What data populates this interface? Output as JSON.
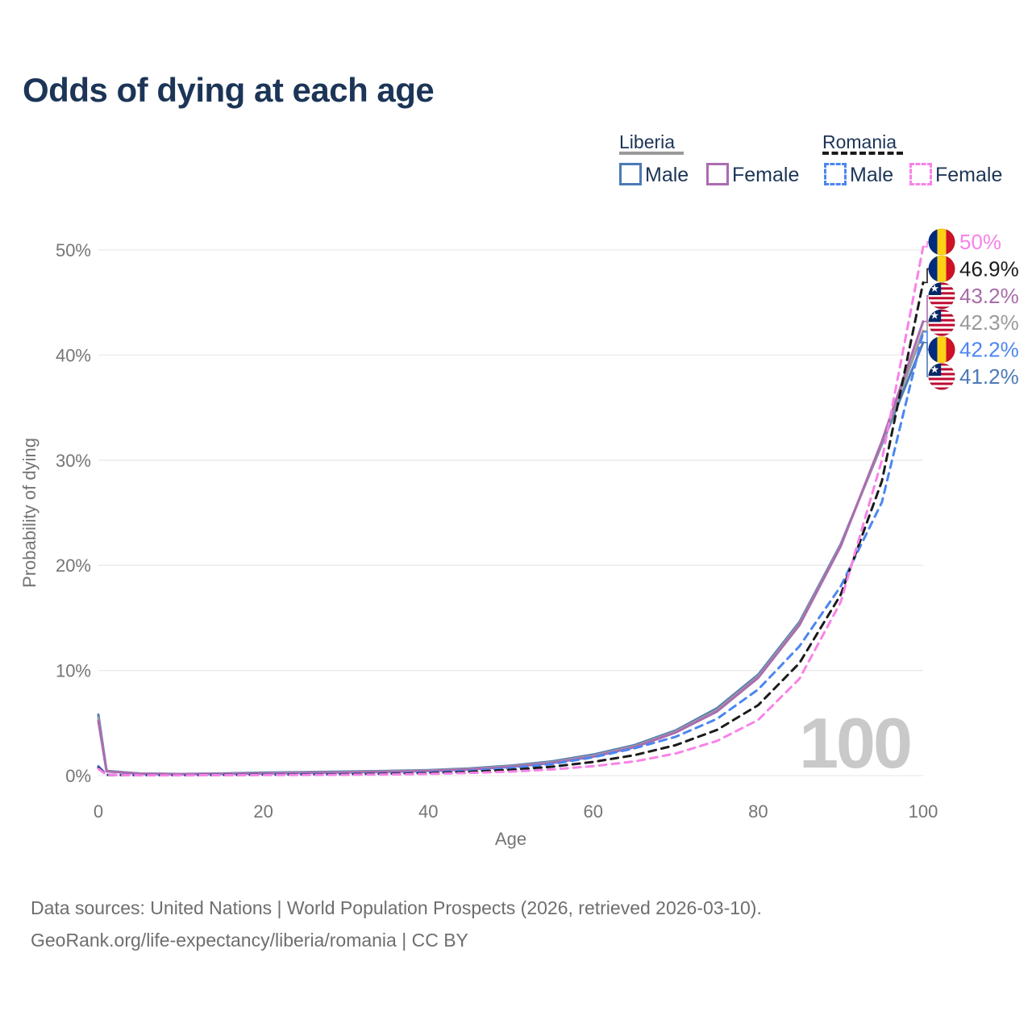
{
  "title": "Odds of dying at each age",
  "legend": {
    "groups": [
      {
        "country": "Liberia",
        "line_style": "solid",
        "items": [
          {
            "label": "Male",
            "series": "liberia_male"
          },
          {
            "label": "Female",
            "series": "liberia_female"
          }
        ]
      },
      {
        "country": "Romania",
        "line_style": "dashed",
        "items": [
          {
            "label": "Male",
            "series": "romania_male"
          },
          {
            "label": "Female",
            "series": "romania_female"
          }
        ]
      }
    ]
  },
  "chart_data": {
    "type": "line",
    "title": "Odds of dying at each age",
    "xlabel": "Age",
    "ylabel": "Probability of dying",
    "xlim": [
      0,
      100
    ],
    "ylim": [
      0,
      50
    ],
    "x_ticks": [
      0,
      20,
      40,
      60,
      80,
      100
    ],
    "y_ticks": [
      "0%",
      "10%",
      "20%",
      "30%",
      "40%",
      "50%"
    ],
    "grid": "horizontal",
    "legend_position": "top-right",
    "watermark": "100",
    "ages": [
      0,
      1,
      5,
      10,
      15,
      20,
      25,
      30,
      35,
      40,
      45,
      50,
      55,
      60,
      65,
      70,
      75,
      80,
      85,
      90,
      95,
      100
    ],
    "series": [
      {
        "id": "liberia_male",
        "name": "Liberia Male",
        "color": "#4d7ab5",
        "dash": "solid",
        "values": [
          5.8,
          0.45,
          0.2,
          0.15,
          0.2,
          0.28,
          0.33,
          0.38,
          0.44,
          0.52,
          0.68,
          0.95,
          1.35,
          2.0,
          2.9,
          4.3,
          6.4,
          9.6,
          14.6,
          22.0,
          31.5,
          41.2
        ]
      },
      {
        "id": "liberia_both",
        "name": "Liberia Both sexes",
        "color": "#9a9aa0",
        "dash": "solid",
        "values": [
          5.5,
          0.42,
          0.19,
          0.14,
          0.18,
          0.24,
          0.29,
          0.34,
          0.4,
          0.48,
          0.63,
          0.88,
          1.27,
          1.9,
          2.8,
          4.2,
          6.25,
          9.45,
          14.45,
          21.9,
          31.6,
          42.3
        ]
      },
      {
        "id": "liberia_female",
        "name": "Liberia Female",
        "color": "#ab6cb0",
        "dash": "solid",
        "values": [
          5.2,
          0.4,
          0.18,
          0.13,
          0.16,
          0.2,
          0.25,
          0.3,
          0.36,
          0.44,
          0.58,
          0.82,
          1.2,
          1.8,
          2.7,
          4.1,
          6.1,
          9.3,
          14.3,
          21.8,
          31.8,
          43.2
        ]
      },
      {
        "id": "romania_male",
        "name": "Romania Male",
        "color": "#4c86f0",
        "dash": "dashed",
        "values": [
          0.9,
          0.07,
          0.04,
          0.04,
          0.07,
          0.1,
          0.12,
          0.15,
          0.2,
          0.3,
          0.46,
          0.72,
          1.1,
          1.75,
          2.6,
          3.7,
          5.4,
          8.2,
          12.3,
          18.0,
          26.0,
          42.2
        ]
      },
      {
        "id": "romania_both",
        "name": "Romania Both sexes",
        "color": "#1b1b1b",
        "dash": "dashed",
        "values": [
          0.75,
          0.065,
          0.035,
          0.035,
          0.055,
          0.08,
          0.09,
          0.12,
          0.16,
          0.23,
          0.35,
          0.55,
          0.84,
          1.3,
          1.95,
          2.9,
          4.35,
          6.7,
          10.7,
          17.2,
          28.0,
          46.9
        ]
      },
      {
        "id": "romania_female",
        "name": "Romania Female",
        "color": "#f783e8",
        "dash": "dashed",
        "values": [
          0.65,
          0.06,
          0.03,
          0.03,
          0.04,
          0.05,
          0.06,
          0.08,
          0.11,
          0.16,
          0.25,
          0.38,
          0.58,
          0.9,
          1.35,
          2.1,
          3.3,
          5.3,
          9.2,
          16.5,
          30.0,
          50.3
        ]
      }
    ],
    "end_labels": [
      {
        "series": "romania_female",
        "flag": "romania",
        "value": "50%",
        "color": "#f783e8"
      },
      {
        "series": "romania_both",
        "flag": "romania",
        "value": "46.9%",
        "color": "#1b1b1b"
      },
      {
        "series": "liberia_female",
        "flag": "liberia",
        "value": "43.2%",
        "color": "#a86ca8"
      },
      {
        "series": "liberia_both",
        "flag": "liberia",
        "value": "42.3%",
        "color": "#9a9a9a"
      },
      {
        "series": "romania_male",
        "flag": "romania",
        "value": "42.2%",
        "color": "#4c86f0"
      },
      {
        "series": "liberia_male",
        "flag": "liberia",
        "value": "41.2%",
        "color": "#4d7ab5"
      }
    ]
  },
  "flags": {
    "romania": {
      "blue": "#002B7F",
      "yellow": "#FCD116",
      "red": "#CE1126"
    },
    "liberia": {
      "red": "#BF0A30",
      "white": "#FFFFFF",
      "blue": "#002868"
    }
  },
  "colors": {
    "title": "#1c3557",
    "axis_text": "#757575",
    "gridline": "#e9e9e9",
    "watermark": "#c9c9c9",
    "footer": "#6e6e6e"
  },
  "footer": {
    "line1": "Data sources: United Nations | World Population Prospects (2026, retrieved 2026-03-10).",
    "line2": "GeoRank.org/life-expectancy/liberia/romania | CC BY"
  }
}
